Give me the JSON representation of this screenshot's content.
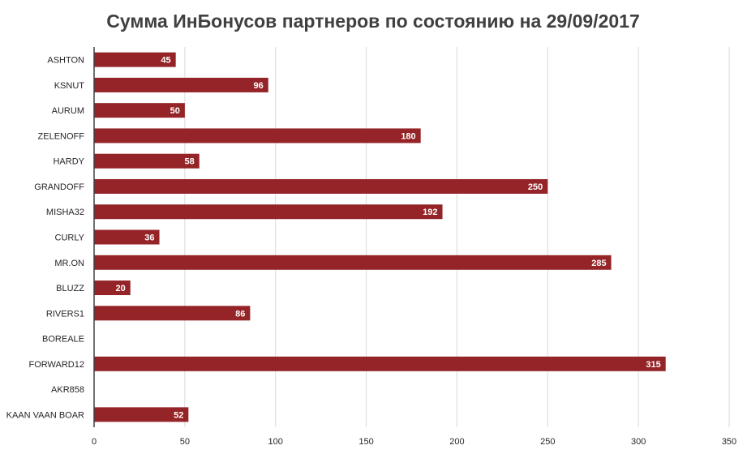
{
  "chart_data": {
    "type": "bar",
    "orientation": "horizontal",
    "title": "Сумма ИнБонусов партнеров по состоянию на 29/09/2017",
    "xlabel": "",
    "ylabel": "",
    "categories": [
      "ASHTON",
      "KSNUT",
      "AURUM",
      "ZELENOFF",
      "HARDY",
      "GRANDOFF",
      "MISHA32",
      "CURLY",
      "MR.ON",
      "BLUZZ",
      "RIVERS1",
      "BOREALE",
      "FORWARD12",
      "AKR858",
      "KAAN VAAN BOAR"
    ],
    "values": [
      45,
      96,
      50,
      180,
      58,
      250,
      192,
      36,
      285,
      20,
      86,
      0,
      315,
      0,
      52
    ],
    "value_labels": [
      "45",
      "96",
      "50",
      "180",
      "58",
      "250",
      "192",
      "36",
      "285",
      "20",
      "86",
      "",
      "315",
      "",
      "52"
    ],
    "xlim": [
      0,
      350
    ],
    "x_ticks": [
      "0",
      "50",
      "100",
      "150",
      "200",
      "250",
      "300",
      "350"
    ],
    "grid": "vertical",
    "legend": "none",
    "bar_color": "#942427",
    "grid_color": "#d9d9d9",
    "axis_color": "#404040"
  }
}
